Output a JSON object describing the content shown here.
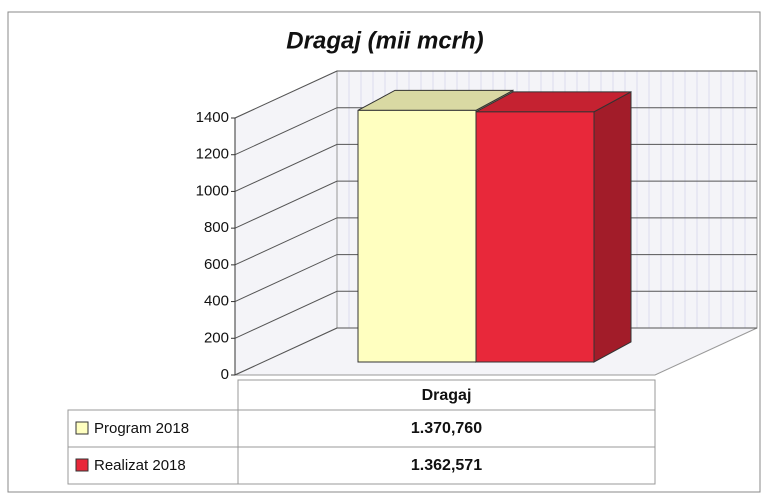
{
  "chart_data": {
    "type": "bar",
    "title": "Dragaj (mii mcrh)",
    "categories": [
      "Dragaj"
    ],
    "series": [
      {
        "name": "Program 2018",
        "color": "#ffffc0",
        "values": [
          1370.76
        ],
        "value_labels": [
          "1.370,760"
        ]
      },
      {
        "name": "Realizat 2018",
        "color": "#e8283a",
        "values": [
          1362.571
        ],
        "value_labels": [
          "1.362,571"
        ]
      }
    ],
    "ylim": [
      0,
      1400
    ],
    "yticks": [
      0,
      200,
      400,
      600,
      800,
      1000,
      1200,
      1400
    ],
    "grid": true
  }
}
